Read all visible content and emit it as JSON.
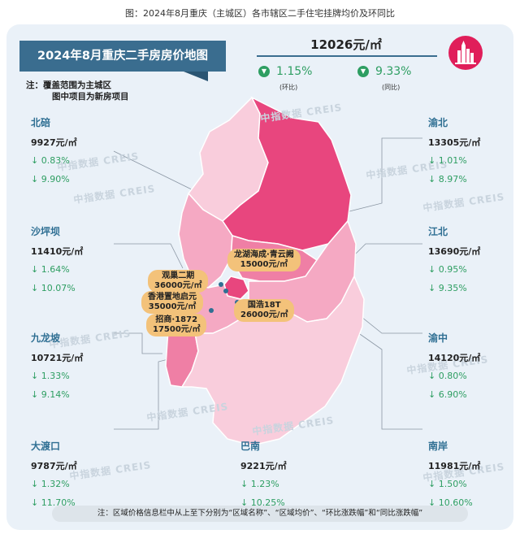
{
  "figure_title": "图：2024年8月重庆（主城区）各市辖区二手住宅挂牌均价及环同比",
  "banner_title": "2024年8月重庆二手房房价地图",
  "note_lines": [
    "注：覆盖范围为主城区",
    "图中项目为新房项目"
  ],
  "average": {
    "price": "12026元/㎡",
    "mom_change": "1.15%",
    "mom_label": "(环比)",
    "yoy_change": "9.33%",
    "yoy_label": "(同比)"
  },
  "districts": [
    {
      "name": "北碚",
      "price": "9927元/㎡",
      "mom": "↓ 0.83%",
      "yoy": "↓ 9.90%"
    },
    {
      "name": "沙坪坝",
      "price": "11410元/㎡",
      "mom": "↓ 1.64%",
      "yoy": "↓ 10.07%"
    },
    {
      "name": "九龙坡",
      "price": "10721元/㎡",
      "mom": "↓ 1.33%",
      "yoy": "↓ 9.14%"
    },
    {
      "name": "大渡口",
      "price": "9787元/㎡",
      "mom": "↓ 1.32%",
      "yoy": "↓ 11.70%"
    },
    {
      "name": "巴南",
      "price": "9221元/㎡",
      "mom": "↓ 1.23%",
      "yoy": "↓ 10.25%"
    },
    {
      "name": "南岸",
      "price": "11981元/㎡",
      "mom": "↓ 1.50%",
      "yoy": "↓ 10.60%"
    },
    {
      "name": "渝中",
      "price": "14120元/㎡",
      "mom": "↓ 0.80%",
      "yoy": "↓ 6.90%"
    },
    {
      "name": "江北",
      "price": "13690元/㎡",
      "mom": "↓ 0.95%",
      "yoy": "↓ 9.35%"
    },
    {
      "name": "渝北",
      "price": "13305元/㎡",
      "mom": "↓ 1.01%",
      "yoy": "↓ 8.97%"
    }
  ],
  "projects": [
    {
      "name": "龙湖海成·青云阙",
      "price": "15000元/㎡"
    },
    {
      "name": "观巢二期",
      "price": "36000元/㎡"
    },
    {
      "name": "香港置地启元",
      "price": "35000元/㎡"
    },
    {
      "name": "国浩18T",
      "price": "26000元/㎡"
    },
    {
      "name": "招商·1872",
      "price": "17500元/㎡"
    }
  ],
  "watermark_text": "中指数据 CREIS",
  "bottom_note": "注：区域价格信息栏中从上至下分别为“区域名称”、“区域均价”、“环比涨跌幅”和“同比涨跌幅”",
  "colors": {
    "banner": "#3a6d8f",
    "district_name": "#2f6f93",
    "decline": "#2e9e62",
    "map_darkest": "#e8467e",
    "map_dark": "#ef7fa5",
    "map_mid": "#f5a9c3",
    "map_light": "#f9cddc",
    "project_label": "#f3c27a",
    "logo": "#e01e5a"
  }
}
